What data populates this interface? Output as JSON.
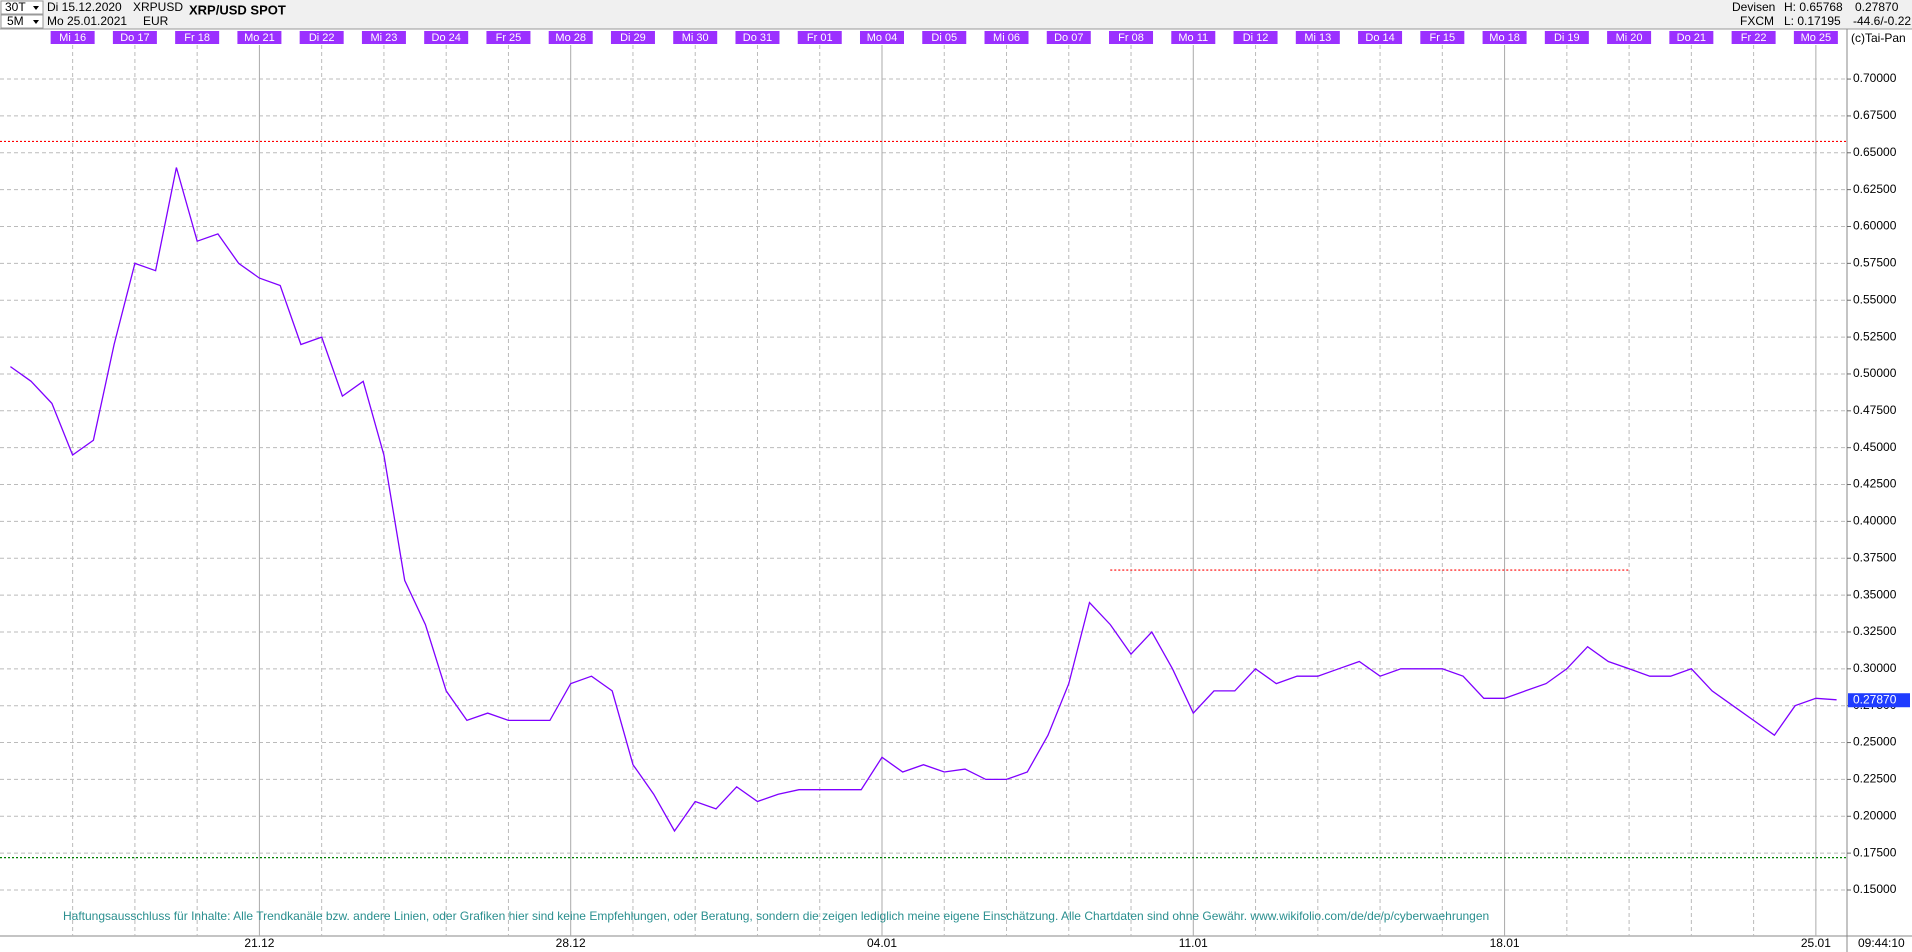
{
  "header": {
    "interval": "30T",
    "from": "Di 15.12.2020",
    "symbol": "XRPUSD",
    "resolution": "5M",
    "to": "Mo 25.01.2021",
    "currency": "EUR",
    "market": "Devisen",
    "high": "H: 0.65768",
    "price": "0.27870",
    "source": "FXCM",
    "low": "L: 0.17195",
    "change": "-44.6/-0.22",
    "copyright": "(c)Tai-Pan",
    "time": "09:44:10"
  },
  "chart_data": {
    "type": "line",
    "title": "XRP/USD SPOT",
    "categories": [
      null,
      null,
      null,
      "Mi 16",
      null,
      null,
      "Do 17",
      null,
      null,
      "Fr 18",
      null,
      null,
      "Mo 21",
      null,
      null,
      "Di 22",
      null,
      null,
      "Mi 23",
      null,
      null,
      "Do 24",
      null,
      null,
      "Fr 25",
      null,
      null,
      "Mo 28",
      null,
      null,
      "Di 29",
      null,
      null,
      "Mi 30",
      null,
      null,
      "Do 31",
      null,
      null,
      "Fr 01",
      null,
      null,
      "Mo 04",
      null,
      null,
      "Di 05",
      null,
      null,
      "Mi 06",
      null,
      null,
      "Do 07",
      null,
      null,
      "Fr 08",
      null,
      null,
      "Mo 11",
      null,
      null,
      "Di 12",
      null,
      null,
      "Mi 13",
      null,
      null,
      "Do 14",
      null,
      null,
      "Fr 15",
      null,
      null,
      "Mo 18",
      null,
      null,
      "Di 19",
      null,
      null,
      "Mi 20",
      null,
      null,
      "Do 21",
      null,
      null,
      "Fr 22",
      null,
      null,
      "Mo 25",
      null
    ],
    "values": [
      0.505,
      0.495,
      0.48,
      0.445,
      0.455,
      0.52,
      0.575,
      0.57,
      0.64,
      0.59,
      0.595,
      0.575,
      0.565,
      0.56,
      0.52,
      0.525,
      0.485,
      0.495,
      0.445,
      0.36,
      0.33,
      0.285,
      0.265,
      0.27,
      0.265,
      0.265,
      0.265,
      0.29,
      0.295,
      0.285,
      0.235,
      0.215,
      0.19,
      0.21,
      0.205,
      0.22,
      0.21,
      0.215,
      0.218,
      0.218,
      0.218,
      0.218,
      0.24,
      0.23,
      0.235,
      0.23,
      0.232,
      0.225,
      0.225,
      0.23,
      0.255,
      0.29,
      0.345,
      0.33,
      0.31,
      0.325,
      0.3,
      0.27,
      0.285,
      0.285,
      0.3,
      0.29,
      0.295,
      0.295,
      0.3,
      0.305,
      0.295,
      0.3,
      0.3,
      0.3,
      0.295,
      0.28,
      0.28,
      0.285,
      0.29,
      0.3,
      0.315,
      0.305,
      0.3,
      0.295,
      0.295,
      0.3,
      0.285,
      0.275,
      0.265,
      0.255,
      0.275,
      0.28,
      0.279
    ],
    "color": "#7f00ff",
    "ylim": [
      0.1188,
      0.7231
    ],
    "yticks": [
      {
        "value": 0.15,
        "label": "0.15000"
      },
      {
        "value": 0.175,
        "label": "0.17500"
      },
      {
        "value": 0.2,
        "label": "0.20000"
      },
      {
        "value": 0.225,
        "label": "0.22500"
      },
      {
        "value": 0.25,
        "label": "0.25000"
      },
      {
        "value": 0.275,
        "label": "0.27500"
      },
      {
        "value": 0.3,
        "label": "0.30000"
      },
      {
        "value": 0.325,
        "label": "0.32500"
      },
      {
        "value": 0.35,
        "label": "0.35000"
      },
      {
        "value": 0.375,
        "label": "0.37500"
      },
      {
        "value": 0.4,
        "label": "0.40000"
      },
      {
        "value": 0.425,
        "label": "0.42500"
      },
      {
        "value": 0.45,
        "label": "0.45000"
      },
      {
        "value": 0.475,
        "label": "0.47500"
      },
      {
        "value": 0.5,
        "label": "0.50000"
      },
      {
        "value": 0.525,
        "label": "0.52500"
      },
      {
        "value": 0.55,
        "label": "0.55000"
      },
      {
        "value": 0.575,
        "label": "0.57500"
      },
      {
        "value": 0.6,
        "label": "0.60000"
      },
      {
        "value": 0.625,
        "label": "0.62500"
      },
      {
        "value": 0.65,
        "label": "0.65000"
      },
      {
        "value": 0.675,
        "label": "0.67500"
      },
      {
        "value": 0.7,
        "label": "0.70000"
      }
    ],
    "grid": true,
    "week_labels": [
      "21.12",
      "28.12",
      "04.01",
      "11.01",
      "18.01",
      "25.01"
    ],
    "reference_lines": [
      {
        "value": 0.65768,
        "color": "#ff0000"
      },
      {
        "value": 0.367,
        "color": "#ff0000",
        "from": "Fr 08",
        "to": "Mi 20"
      },
      {
        "value": 0.17195,
        "color": "#008000"
      }
    ],
    "last": {
      "value": 0.2787,
      "label": "0.27870"
    },
    "note": "Haftungsausschluss für Inhalte: Alle Trendkanäle bzw. andere Linien, oder Grafiken hier sind keine Empfehlungen, oder Beratung, sondern die zeigen lediglich meine eigene Einschätzung. Alle Chartdaten sind ohne Gewähr.  www.wikifolio.com/de/de/p/cyberwaehrungen"
  }
}
